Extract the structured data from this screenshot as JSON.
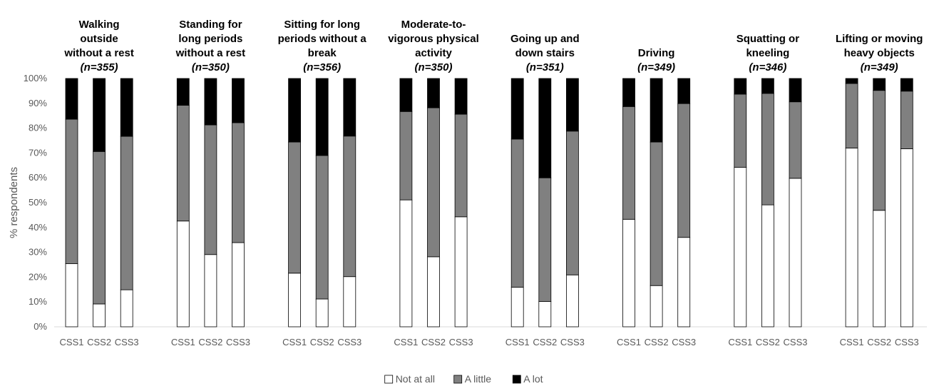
{
  "chart_data": {
    "type": "bar",
    "stacked": true,
    "ylabel": "% respondents",
    "ylim": [
      0,
      100
    ],
    "yticks": [
      "0%",
      "10%",
      "20%",
      "30%",
      "40%",
      "50%",
      "60%",
      "70%",
      "80%",
      "90%",
      "100%"
    ],
    "grid": false,
    "legend_position": "bottom",
    "categories": [
      "CSS1",
      "CSS2",
      "CSS3"
    ],
    "series": [
      {
        "name": "Not at all",
        "color": "#ffffff"
      },
      {
        "name": "A little",
        "color": "#808080"
      },
      {
        "name": "A lot",
        "color": "#000000"
      }
    ],
    "groups": [
      {
        "title_lines": [
          "Walking",
          "outside",
          "without a rest"
        ],
        "n": "(n=355)",
        "values": [
          [
            25.4,
            58.2,
            16.4
          ],
          [
            9.2,
            61.4,
            29.4
          ],
          [
            14.9,
            61.8,
            23.3
          ]
        ]
      },
      {
        "title_lines": [
          "Standing for",
          "long periods",
          "without a rest"
        ],
        "n": "(n=350)",
        "values": [
          [
            42.6,
            46.6,
            10.8
          ],
          [
            29.1,
            52.2,
            18.7
          ],
          [
            33.9,
            48.3,
            17.8
          ]
        ]
      },
      {
        "title_lines": [
          "Sitting for long",
          "periods without a",
          "break"
        ],
        "n": "(n=356)",
        "values": [
          [
            21.6,
            52.8,
            25.6
          ],
          [
            11.2,
            57.8,
            31.0
          ],
          [
            20.2,
            56.6,
            23.2
          ]
        ]
      },
      {
        "title_lines": [
          "Moderate-to-",
          "vigorous physical",
          "activity"
        ],
        "n": "(n=350)",
        "values": [
          [
            51.1,
            35.6,
            13.3
          ],
          [
            28.2,
            60.0,
            11.8
          ],
          [
            44.3,
            41.3,
            14.4
          ]
        ]
      },
      {
        "title_lines": [
          "Going up and",
          "down stairs"
        ],
        "n": "(n=351)",
        "values": [
          [
            15.9,
            59.7,
            24.4
          ],
          [
            10.2,
            49.8,
            40.0
          ],
          [
            20.9,
            57.9,
            21.2
          ]
        ]
      },
      {
        "title_lines": [
          "Driving"
        ],
        "n": "(n=349)",
        "values": [
          [
            43.3,
            45.4,
            11.3
          ],
          [
            16.6,
            57.8,
            25.6
          ],
          [
            36.0,
            53.9,
            10.1
          ]
        ]
      },
      {
        "title_lines": [
          "Squatting or",
          "kneeling"
        ],
        "n": "(n=346)",
        "values": [
          [
            64.2,
            29.5,
            6.3
          ],
          [
            49.1,
            44.9,
            6.0
          ],
          [
            59.8,
            30.8,
            9.4
          ]
        ]
      },
      {
        "title_lines": [
          "Lifting or moving",
          "heavy objects"
        ],
        "n": "(n=349)",
        "values": [
          [
            72.0,
            26.0,
            2.0
          ],
          [
            46.9,
            48.3,
            4.8
          ],
          [
            71.7,
            23.2,
            5.1
          ]
        ]
      }
    ]
  }
}
